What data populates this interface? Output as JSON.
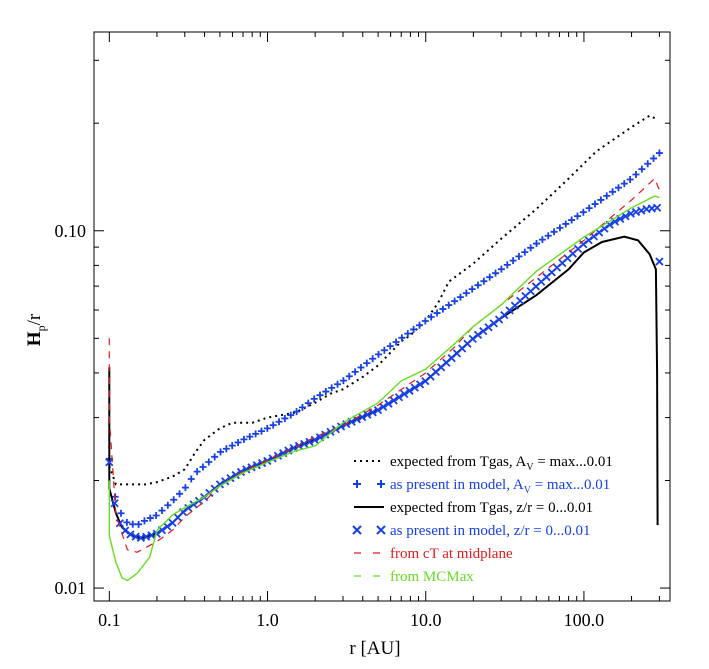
{
  "chart_data": {
    "type": "line",
    "xlabel": "r [AU]",
    "ylabel_main": "H",
    "ylabel_sub": "p",
    "ylabel_tail": "/r",
    "x_scale": "log",
    "y_scale": "log",
    "xlim": [
      0.08,
      350
    ],
    "ylim": [
      0.0092,
      0.36
    ],
    "x_ticks": [
      {
        "value": 0.1,
        "label": "0.1"
      },
      {
        "value": 1,
        "label": "1.0"
      },
      {
        "value": 10,
        "label": "10.0"
      },
      {
        "value": 100,
        "label": "100.0"
      }
    ],
    "y_ticks": [
      {
        "value": 0.01,
        "label": "0.01"
      },
      {
        "value": 0.1,
        "label": "0.10"
      }
    ],
    "grid": false,
    "legend_position": "bottom-right",
    "series": [
      {
        "name": "expected from Tgas, A",
        "name_sub": "V",
        "name_tail": " = max...0.01",
        "style": "dotted",
        "color": "#000000",
        "points": [
          [
            0.1,
            0.022
          ],
          [
            0.11,
            0.0195
          ],
          [
            0.13,
            0.0195
          ],
          [
            0.17,
            0.0195
          ],
          [
            0.2,
            0.0198
          ],
          [
            0.25,
            0.0205
          ],
          [
            0.3,
            0.0215
          ],
          [
            0.35,
            0.024
          ],
          [
            0.4,
            0.026
          ],
          [
            0.5,
            0.028
          ],
          [
            0.6,
            0.029
          ],
          [
            0.8,
            0.029
          ],
          [
            1.0,
            0.03
          ],
          [
            1.5,
            0.031
          ],
          [
            2.0,
            0.033
          ],
          [
            2.5,
            0.035
          ],
          [
            3.0,
            0.036
          ],
          [
            4.0,
            0.039
          ],
          [
            5.0,
            0.042
          ],
          [
            7.0,
            0.049
          ],
          [
            8.0,
            0.051
          ],
          [
            10.0,
            0.056
          ],
          [
            12.0,
            0.063
          ],
          [
            14.0,
            0.072
          ],
          [
            20.0,
            0.081
          ],
          [
            30.0,
            0.095
          ],
          [
            50.0,
            0.115
          ],
          [
            80.0,
            0.14
          ],
          [
            120.0,
            0.167
          ],
          [
            200.0,
            0.195
          ],
          [
            260.0,
            0.21
          ],
          [
            290.0,
            0.205
          ]
        ]
      },
      {
        "name": "as present in model, A",
        "name_sub": "V",
        "name_tail": " = max...0.01",
        "style": "plus",
        "color": "#1740e6",
        "points": [
          [
            0.1,
            0.023
          ],
          [
            0.11,
            0.0175
          ],
          [
            0.12,
            0.016
          ],
          [
            0.13,
            0.0152
          ],
          [
            0.15,
            0.015
          ],
          [
            0.17,
            0.0155
          ],
          [
            0.2,
            0.016
          ],
          [
            0.25,
            0.0175
          ],
          [
            0.3,
            0.019
          ],
          [
            0.35,
            0.021
          ],
          [
            0.4,
            0.022
          ],
          [
            0.5,
            0.024
          ],
          [
            0.7,
            0.026
          ],
          [
            1.0,
            0.028
          ],
          [
            1.5,
            0.031
          ],
          [
            2.0,
            0.034
          ],
          [
            3.0,
            0.038
          ],
          [
            5.0,
            0.045
          ],
          [
            7.0,
            0.05
          ],
          [
            10.0,
            0.056
          ],
          [
            20.0,
            0.069
          ],
          [
            30.0,
            0.078
          ],
          [
            50.0,
            0.092
          ],
          [
            100.0,
            0.113
          ],
          [
            200.0,
            0.14
          ],
          [
            300.0,
            0.165
          ]
        ]
      },
      {
        "name": "expected from Tgas, z/r = 0...0.01",
        "style": "solid",
        "color": "#000000",
        "points": [
          [
            0.1,
            0.0415
          ],
          [
            0.1,
            0.019
          ],
          [
            0.11,
            0.0162
          ],
          [
            0.12,
            0.0148
          ],
          [
            0.14,
            0.014
          ],
          [
            0.16,
            0.0138
          ],
          [
            0.2,
            0.0142
          ],
          [
            0.25,
            0.0152
          ],
          [
            0.3,
            0.0165
          ],
          [
            0.4,
            0.018
          ],
          [
            0.5,
            0.0195
          ],
          [
            0.7,
            0.0213
          ],
          [
            1.0,
            0.0227
          ],
          [
            1.5,
            0.0248
          ],
          [
            2.0,
            0.026
          ],
          [
            3.0,
            0.0285
          ],
          [
            5.0,
            0.0315
          ],
          [
            10.0,
            0.038
          ],
          [
            20.0,
            0.05
          ],
          [
            30.0,
            0.057
          ],
          [
            50.0,
            0.066
          ],
          [
            80.0,
            0.078
          ],
          [
            100.0,
            0.087
          ],
          [
            130.0,
            0.093
          ],
          [
            180.0,
            0.0963
          ],
          [
            220.0,
            0.094
          ],
          [
            260.0,
            0.086
          ],
          [
            285.0,
            0.078
          ],
          [
            290.0,
            0.04
          ],
          [
            292.0,
            0.015
          ]
        ]
      },
      {
        "name": "as present in model, z/r = 0...0.01",
        "style": "cross",
        "color": "#1740e6",
        "points": [
          [
            0.1,
            0.0225
          ],
          [
            0.11,
            0.0162
          ],
          [
            0.12,
            0.0147
          ],
          [
            0.14,
            0.014
          ],
          [
            0.16,
            0.0138
          ],
          [
            0.2,
            0.0142
          ],
          [
            0.25,
            0.0152
          ],
          [
            0.3,
            0.0165
          ],
          [
            0.4,
            0.018
          ],
          [
            0.5,
            0.0195
          ],
          [
            0.7,
            0.0213
          ],
          [
            1.0,
            0.0227
          ],
          [
            1.5,
            0.0248
          ],
          [
            2.0,
            0.026
          ],
          [
            3.0,
            0.0285
          ],
          [
            5.0,
            0.0315
          ],
          [
            7.0,
            0.0345
          ],
          [
            10.0,
            0.038
          ],
          [
            15.0,
            0.0445
          ],
          [
            20.0,
            0.05
          ],
          [
            30.0,
            0.057
          ],
          [
            50.0,
            0.07
          ],
          [
            100.0,
            0.092
          ],
          [
            150.0,
            0.105
          ],
          [
            200.0,
            0.112
          ],
          [
            250.0,
            0.115
          ],
          [
            290.0,
            0.116
          ],
          [
            300.0,
            0.082
          ]
        ]
      },
      {
        "name": "from cT at midplane",
        "style": "dashed",
        "color": "#e01b1b",
        "points": [
          [
            0.1,
            0.05
          ],
          [
            0.1,
            0.03
          ],
          [
            0.11,
            0.016
          ],
          [
            0.13,
            0.0128
          ],
          [
            0.15,
            0.0126
          ],
          [
            0.2,
            0.0135
          ],
          [
            0.25,
            0.0145
          ],
          [
            0.3,
            0.0158
          ],
          [
            0.4,
            0.0175
          ],
          [
            0.5,
            0.0193
          ],
          [
            0.7,
            0.0212
          ],
          [
            1.0,
            0.0228
          ],
          [
            1.5,
            0.0248
          ],
          [
            2.0,
            0.0265
          ],
          [
            3.0,
            0.0285
          ],
          [
            5.0,
            0.0325
          ],
          [
            10.0,
            0.04
          ],
          [
            15.0,
            0.047
          ],
          [
            20.0,
            0.054
          ],
          [
            30.0,
            0.062
          ],
          [
            50.0,
            0.074
          ],
          [
            100.0,
            0.094
          ],
          [
            200.0,
            0.122
          ],
          [
            280.0,
            0.14
          ],
          [
            300.0,
            0.13
          ]
        ]
      },
      {
        "name": "from MCMax",
        "style": "solid-thin",
        "color": "#66dd22",
        "points": [
          [
            0.1,
            0.02
          ],
          [
            0.1,
            0.014
          ],
          [
            0.11,
            0.0118
          ],
          [
            0.12,
            0.0107
          ],
          [
            0.13,
            0.0105
          ],
          [
            0.15,
            0.011
          ],
          [
            0.18,
            0.0122
          ],
          [
            0.2,
            0.0145
          ],
          [
            0.25,
            0.016
          ],
          [
            0.3,
            0.0168
          ],
          [
            0.4,
            0.018
          ],
          [
            0.5,
            0.0193
          ],
          [
            0.7,
            0.021
          ],
          [
            1.0,
            0.0225
          ],
          [
            1.5,
            0.0242
          ],
          [
            2.0,
            0.025
          ],
          [
            3.0,
            0.029
          ],
          [
            5.0,
            0.033
          ],
          [
            7.0,
            0.038
          ],
          [
            10.0,
            0.041
          ],
          [
            15.0,
            0.048
          ],
          [
            20.0,
            0.054
          ],
          [
            30.0,
            0.062
          ],
          [
            50.0,
            0.077
          ],
          [
            100.0,
            0.096
          ],
          [
            200.0,
            0.116
          ],
          [
            280.0,
            0.125
          ],
          [
            300.0,
            0.124
          ]
        ]
      }
    ]
  }
}
